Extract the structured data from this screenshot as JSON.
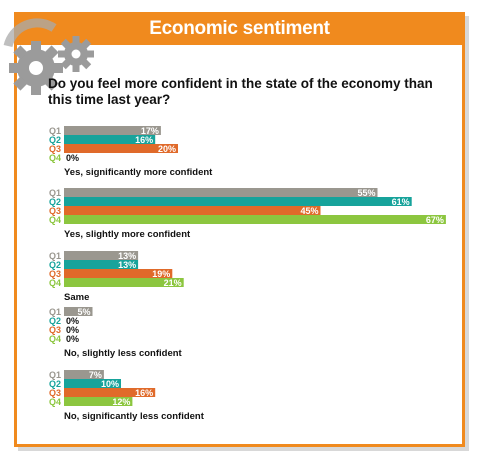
{
  "header": {
    "title": "Economic sentiment"
  },
  "question": "Do you feel more confident in the state of the economy than this time last year?",
  "colors": {
    "accent": "#f08a1e",
    "Q1": "#9a978f",
    "Q2": "#17a39b",
    "Q3": "#e06a2a",
    "Q4": "#8cc63f"
  },
  "icons": [
    "gears-icon"
  ],
  "chart_data": {
    "type": "bar",
    "orientation": "horizontal",
    "series_labels": [
      "Q1",
      "Q2",
      "Q3",
      "Q4"
    ],
    "groups": [
      {
        "label": "Yes, significantly more confident",
        "values": [
          17,
          16,
          20,
          0
        ]
      },
      {
        "label": "Yes, slightly more confident",
        "values": [
          55,
          61,
          45,
          67
        ]
      },
      {
        "label": "Same",
        "values": [
          13,
          13,
          19,
          21
        ]
      },
      {
        "label": "No, slightly less confident",
        "values": [
          5,
          0,
          0,
          0
        ]
      },
      {
        "label": "No, significantly less confident",
        "values": [
          7,
          10,
          16,
          12
        ]
      }
    ],
    "value_suffix": "%",
    "xlim": [
      0,
      67
    ]
  }
}
